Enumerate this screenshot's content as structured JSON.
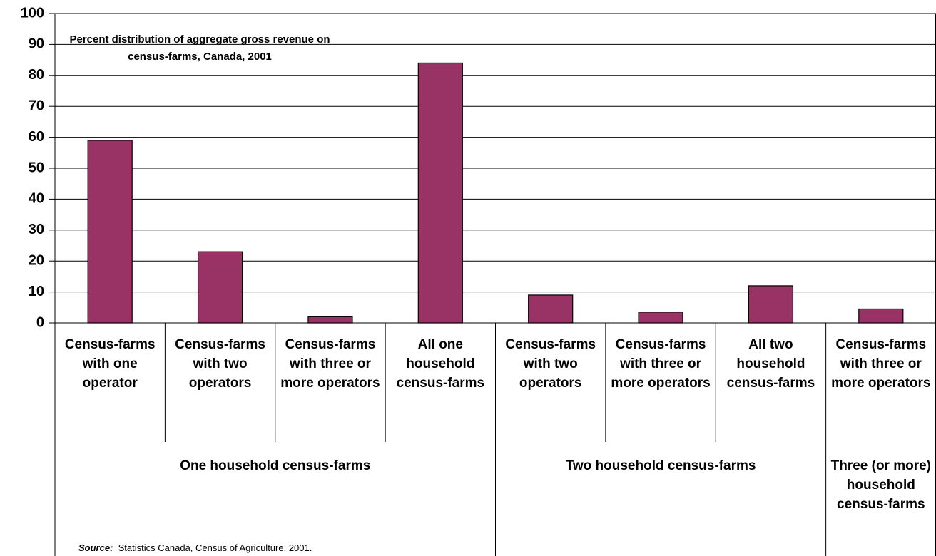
{
  "chart_data": {
    "type": "bar",
    "title": "Percent distribution of aggregate gross revenue on census-farms, Canada, 2001",
    "color": "#993366",
    "ylim": [
      0,
      100
    ],
    "yticks": [
      0,
      10,
      20,
      30,
      40,
      50,
      60,
      70,
      80,
      90,
      100
    ],
    "grid": true,
    "groups": [
      {
        "name": "One household census-farms",
        "categories": [
          "Census-farms with one operator",
          "Census-farms with two operators",
          "Census-farms with three or more operators",
          "All one household census-farms"
        ],
        "values": [
          59,
          23,
          2,
          84
        ]
      },
      {
        "name": "Two household census-farms",
        "categories": [
          "Census-farms with two operators",
          "Census-farms with three or more operators",
          "All two household census-farms"
        ],
        "values": [
          9,
          3.5,
          12
        ]
      },
      {
        "name": "Three (or more) household census-farms",
        "categories": [
          "Census-farms with three or more operators"
        ],
        "values": [
          4.5
        ]
      }
    ],
    "source_label": "Source:",
    "source": "Statistics Canada, Census of Agriculture, 2001."
  }
}
